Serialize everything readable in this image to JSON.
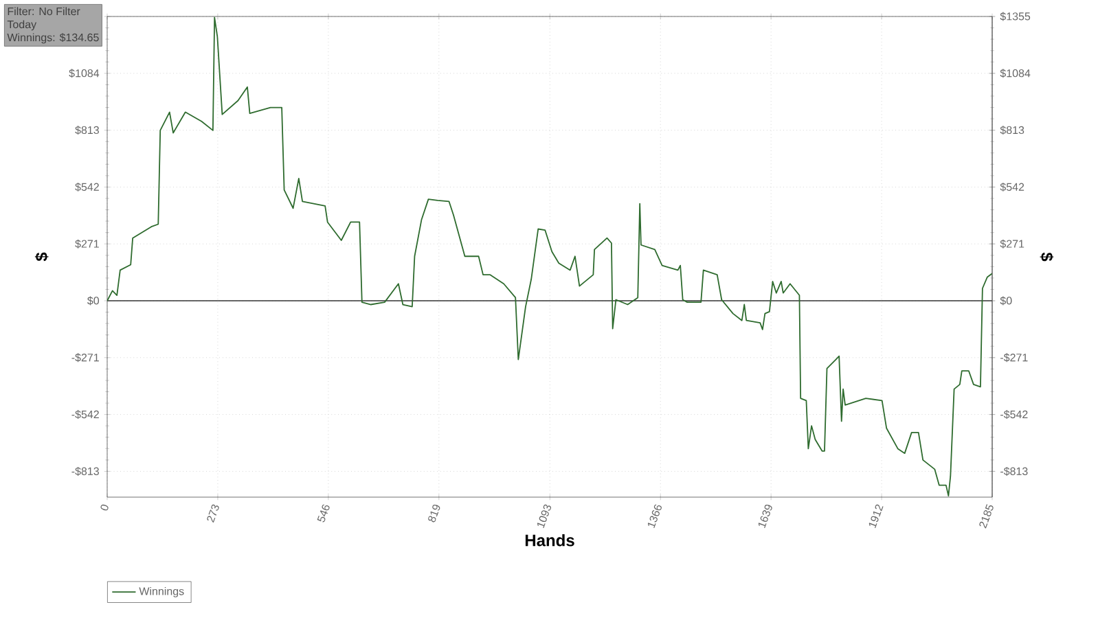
{
  "chart_data": {
    "type": "line",
    "xlabel": "Hands",
    "ylabel": "$",
    "y2label": "$",
    "annotations": [
      "Filter: No Filter",
      "Today",
      "Winnings: $134.65"
    ],
    "series": [
      {
        "name": "Winnings",
        "color": "#2e6b2e",
        "x": [
          0,
          13,
          24,
          32,
          58,
          63,
          109,
          126,
          131,
          154,
          163,
          193,
          233,
          261,
          265,
          272,
          284,
          323,
          346,
          352,
          403,
          431,
          437,
          459,
          473,
          482,
          538,
          544,
          578,
          601,
          623,
          629,
          651,
          685,
          719,
          730,
          753,
          759,
          776,
          793,
          816,
          844,
          855,
          883,
          917,
          928,
          945,
          979,
          1008,
          1015,
          1033,
          1047,
          1064,
          1081,
          1098,
          1115,
          1143,
          1155,
          1166,
          1200,
          1203,
          1234,
          1245,
          1248,
          1256,
          1285,
          1310,
          1315,
          1318,
          1352,
          1370,
          1409,
          1415,
          1421,
          1432,
          1466,
          1472,
          1506,
          1517,
          1545,
          1567,
          1573,
          1578,
          1612,
          1618,
          1624,
          1635,
          1643,
          1652,
          1664,
          1669,
          1686,
          1709,
          1712,
          1726,
          1731,
          1739,
          1748,
          1765,
          1771,
          1777,
          1799,
          1807,
          1813,
          1817,
          1822,
          1873,
          1913,
          1924,
          1952,
          1969,
          1986,
          2003,
          2014,
          2043,
          2054,
          2071,
          2077,
          2082,
          2091,
          2105,
          2110,
          2127,
          2139,
          2156,
          2161,
          2173,
          2185
        ],
        "values": [
          0,
          48,
          26,
          146,
          172,
          299,
          353,
          365,
          812,
          899,
          800,
          899,
          855,
          812,
          1350,
          1259,
          888,
          954,
          1019,
          893,
          921,
          921,
          528,
          441,
          583,
          473,
          452,
          375,
          288,
          375,
          375,
          -7,
          -18,
          -7,
          81,
          -18,
          -28,
          212,
          386,
          484,
          478,
          473,
          408,
          212,
          212,
          124,
          124,
          81,
          15,
          -280,
          -28,
          103,
          342,
          337,
          234,
          179,
          146,
          212,
          70,
          124,
          244,
          299,
          275,
          -133,
          5,
          -18,
          15,
          463,
          266,
          244,
          168,
          146,
          168,
          5,
          -7,
          -7,
          146,
          124,
          5,
          -61,
          -94,
          -18,
          -94,
          -105,
          -137,
          -61,
          -52,
          92,
          37,
          92,
          37,
          81,
          26,
          -465,
          -476,
          -705,
          -596,
          -661,
          -716,
          -716,
          -323,
          -280,
          -264,
          -574,
          -421,
          -497,
          -465,
          -476,
          -607,
          -705,
          -727,
          -628,
          -628,
          -759,
          -803,
          -879,
          -879,
          -930,
          -836,
          -421,
          -399,
          -334,
          -334,
          -399,
          -410,
          59,
          113,
          130
        ]
      }
    ],
    "xlim": [
      0,
      2185
    ],
    "xticks": [
      0,
      273,
      546,
      819,
      1093,
      1366,
      1639,
      1912,
      2185
    ],
    "ylim": [
      -936,
      1355
    ],
    "yticks": [
      {
        "value": -813,
        "label": "-$813"
      },
      {
        "value": -542,
        "label": "-$542"
      },
      {
        "value": -271,
        "label": "-$271"
      },
      {
        "value": 0,
        "label": "$0"
      },
      {
        "value": 271,
        "label": "$271"
      },
      {
        "value": 542,
        "label": "$542"
      },
      {
        "value": 813,
        "label": "$813"
      },
      {
        "value": 1084,
        "label": "$1084"
      },
      {
        "value": 1355,
        "label": null
      }
    ],
    "y2lim": [
      -936,
      1355
    ],
    "y2ticks": [
      {
        "value": -813,
        "label": "-$813"
      },
      {
        "value": -542,
        "label": "-$542"
      },
      {
        "value": -271,
        "label": "-$271"
      },
      {
        "value": 0,
        "label": "$0"
      },
      {
        "value": 271,
        "label": "$271"
      },
      {
        "value": 542,
        "label": "$542"
      },
      {
        "value": 813,
        "label": "$813"
      },
      {
        "value": 1084,
        "label": "$1084"
      },
      {
        "value": 1355,
        "label": "$1355"
      }
    ],
    "ref_lines": [
      {
        "axis": "y",
        "value": 0,
        "color": "#333333"
      }
    ],
    "grid": true,
    "legend": "bottom left",
    "marker": "none",
    "line_style": "solid"
  }
}
